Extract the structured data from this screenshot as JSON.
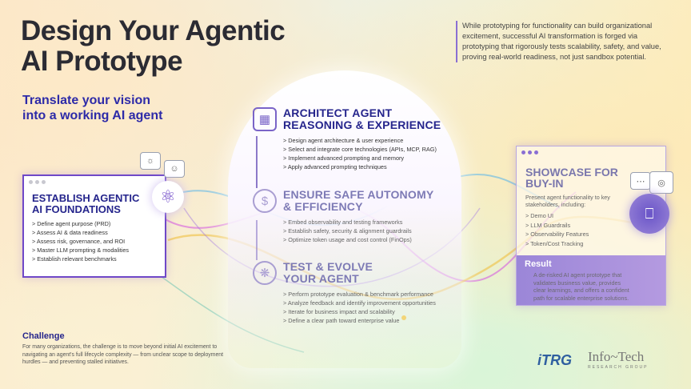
{
  "header": {
    "title_line1": "Design Your Agentic",
    "title_line2": "AI Prototype",
    "subtitle_line1": "Translate your vision",
    "subtitle_line2": "into a working AI agent"
  },
  "quote": "While prototyping for functionality can build organizational excitement, successful AI transformation is forged via prototyping that rigorously tests scalability, safety, and value, proving real-world readiness, not just sandbox potential.",
  "foundations": {
    "title_line1": "ESTABLISH AGENTIC",
    "title_line2": "AI FOUNDATIONS",
    "items": [
      "> Define agent purpose (PRD)",
      "> Assess AI & data readiness",
      "> Assess risk, governance, and ROI",
      "> Master LLM prompting & modalities",
      "> Establish relevant benchmarks"
    ]
  },
  "steps": [
    {
      "title_line1": "ARCHITECT AGENT",
      "title_line2": "REASONING & EXPERIENCE",
      "icon": "puzzle-icon",
      "items": [
        "> Design agent architecture & user experience",
        "> Select and integrate core technologies (APIs, MCP, RAG)",
        ">  Implement advanced prompting and memory",
        "> Apply advanced prompting techniques"
      ]
    },
    {
      "title_line1": "ENSURE SAFE AUTONOMY",
      "title_line2": "& EFFICIENCY",
      "icon": "shield-dollar-icon",
      "items": [
        "> Embed observability and testing frameworks",
        "> Establish safety, security & alignment guardrails",
        "> Optimize token usage and cost control (FinOps)"
      ]
    },
    {
      "title_line1": "TEST & EVOLVE",
      "title_line2": "YOUR AGENT",
      "icon": "network-icon",
      "items": [
        "> Perform prototype evaluation & benchmark performance",
        "> Analyze feedback and identify improvement opportunities",
        "> Iterate for business impact and scalability",
        "> Define a clear path toward enterprise value"
      ]
    }
  ],
  "showcase": {
    "title_line1": "SHOWCASE FOR",
    "title_line2": "BUY-IN",
    "intro": "Present agent functionality to key stakeholders, including:",
    "items": [
      "> Demo UI",
      "> LLM Guardrails",
      "> Observability Features",
      "> Token/Cost Tracking"
    ],
    "result_title": "Result",
    "result_text": "A de-risked AI agent prototype that validates business value, provides clear learnings, and offers a confident path for scalable enterprise solutions."
  },
  "challenge": {
    "title": "Challenge",
    "text": "For many organizations, the challenge is to move beyond initial AI excitement to navigating an agent's full lifecycle complexity — from unclear scope to deployment hurdles — and preventing stalled initiatives."
  },
  "logos": {
    "itrg": "iTRG",
    "infotech": "Info~Tech",
    "infotech_sub": "RESEARCH GROUP"
  },
  "colors": {
    "primary": "#25258c",
    "accent": "#6f48c8",
    "result_bg": "#9b86d8"
  }
}
